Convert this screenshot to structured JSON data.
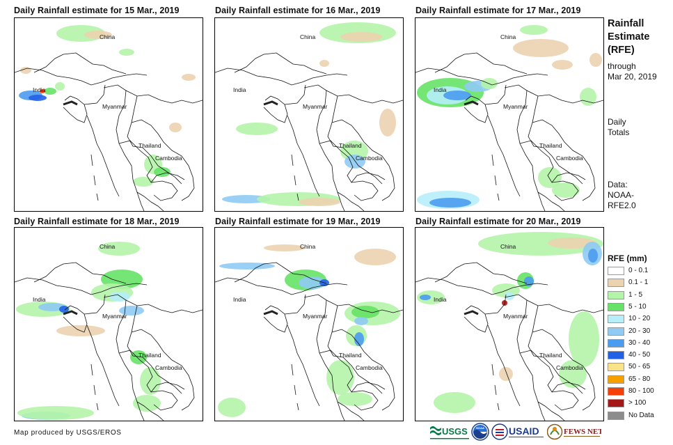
{
  "panels": [
    {
      "title": "Daily Rainfall estimate for 15 Mar., 2019",
      "labels": [
        "China",
        "India",
        "Myanmar",
        "Thailand",
        "Cambodia"
      ]
    },
    {
      "title": "Daily Rainfall estimate for 16 Mar., 2019",
      "labels": [
        "China",
        "India",
        "Myanmar",
        "Thailand",
        "Cambodia"
      ]
    },
    {
      "title": "Daily Rainfall estimate for 17 Mar., 2019",
      "labels": [
        "China",
        "India",
        "Myanmar",
        "Thailand",
        "Cambodia"
      ]
    },
    {
      "title": "Daily Rainfall estimate for 18 Mar., 2019",
      "labels": [
        "China",
        "India",
        "Myanmar",
        "Thailand",
        "Cambodia"
      ]
    },
    {
      "title": "Daily Rainfall estimate for 19 Mar., 2019",
      "labels": [
        "China",
        "India",
        "Myanmar",
        "Thailand",
        "Cambodia"
      ]
    },
    {
      "title": "Daily Rainfall estimate for 20 Mar., 2019",
      "labels": [
        "China",
        "India",
        "Myanmar",
        "Thailand",
        "Cambodia"
      ]
    }
  ],
  "sidebar": {
    "title_lines": [
      "Rainfall",
      "Estimate",
      "(RFE)"
    ],
    "through_lines": [
      "through",
      "Mar 20, 2019"
    ],
    "totals_lines": [
      "Daily",
      "Totals"
    ],
    "data_lines": [
      "Data:",
      "NOAA-",
      "RFE2.0"
    ]
  },
  "legend": {
    "title": "RFE (mm)",
    "items": [
      {
        "label": "0 - 0.1",
        "color": "#ffffff"
      },
      {
        "label": "0.1 - 1",
        "color": "#ecd3b0"
      },
      {
        "label": "1 - 5",
        "color": "#b4f4a8"
      },
      {
        "label": "5 - 10",
        "color": "#66e266"
      },
      {
        "label": "10 - 20",
        "color": "#b6eefa"
      },
      {
        "label": "20 - 30",
        "color": "#8fcbf4"
      },
      {
        "label": "30 - 40",
        "color": "#4b9bf0"
      },
      {
        "label": "40 - 50",
        "color": "#2261e6"
      },
      {
        "label": "50 - 65",
        "color": "#fae387"
      },
      {
        "label": "65 - 80",
        "color": "#f7a000"
      },
      {
        "label": "80 - 100",
        "color": "#f5400a"
      },
      {
        "label": "> 100",
        "color": "#a41818"
      },
      {
        "label": "No Data",
        "color": "#8c8c8c"
      }
    ]
  },
  "footer": {
    "credit": "Map produced by USGS/EROS",
    "logos": [
      "USGS",
      "NOAA",
      "USAID",
      "FEWS NET"
    ]
  }
}
